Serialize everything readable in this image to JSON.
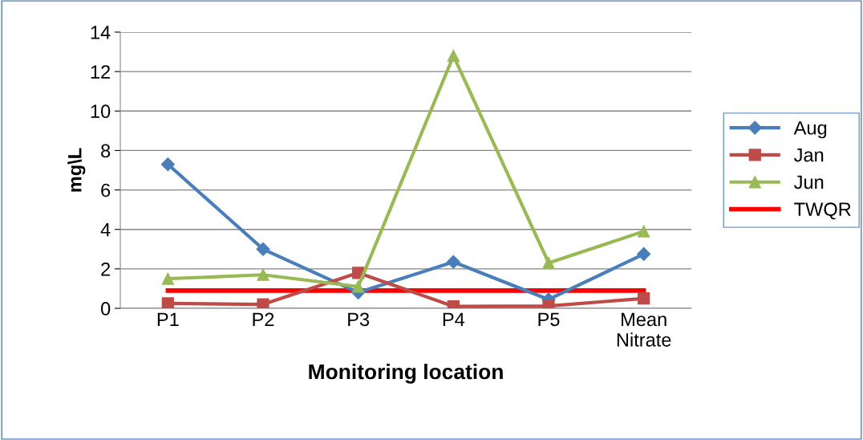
{
  "chart_data": {
    "type": "line",
    "xlabel": "Monitoring location",
    "ylabel": "mg\\L",
    "categories": [
      "P1",
      "P2",
      "P3",
      "P4",
      "P5",
      "Mean\nNitrate"
    ],
    "series": [
      {
        "name": "Aug",
        "color": "#4a7ebb",
        "marker": "diamond",
        "values": [
          7.3,
          3.0,
          0.8,
          2.35,
          0.45,
          2.75
        ]
      },
      {
        "name": "Jan",
        "color": "#be4b48",
        "marker": "square",
        "values": [
          0.25,
          0.2,
          1.8,
          0.1,
          0.12,
          0.5
        ]
      },
      {
        "name": "Jun",
        "color": "#98b954",
        "marker": "triangle",
        "values": [
          1.5,
          1.7,
          1.1,
          12.8,
          2.3,
          3.9
        ]
      },
      {
        "name": "TWQR",
        "color": "#ff0000",
        "marker": "none",
        "values": [
          0.9,
          0.9,
          0.9,
          0.9,
          0.9,
          0.9
        ]
      }
    ],
    "ylim": [
      0,
      14
    ],
    "yticks": [
      0,
      2,
      4,
      6,
      8,
      10,
      12,
      14
    ],
    "grid": "y",
    "legend": "right",
    "line_style": "solid"
  }
}
